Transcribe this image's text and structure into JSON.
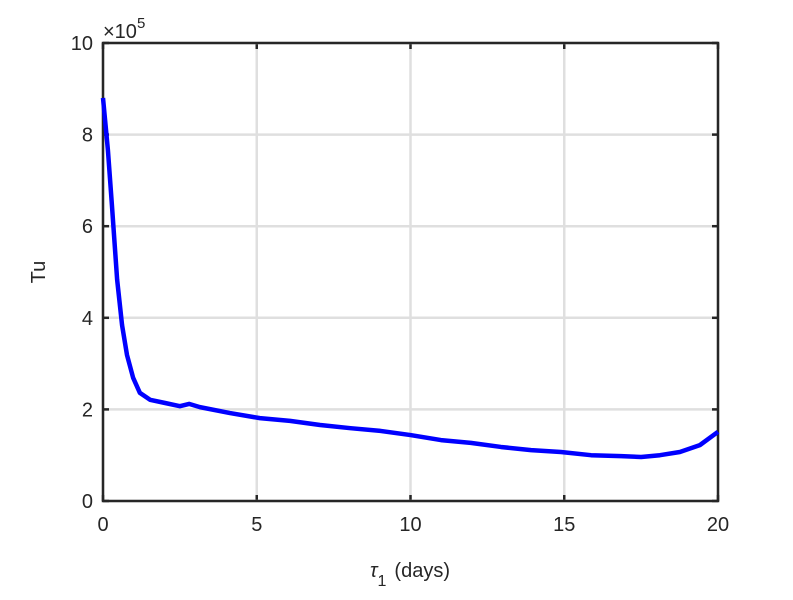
{
  "chart_data": {
    "type": "line",
    "ylabel": "Tu",
    "xlabel": {
      "symbol": "τ",
      "subscript": "1",
      "text": "(days)"
    },
    "y_exponent": {
      "base": "×10",
      "power": "5"
    },
    "xlim": [
      0,
      20
    ],
    "xticks": [
      0,
      5,
      10,
      15,
      20
    ],
    "ylim": [
      0,
      10
    ],
    "yticks": [
      0,
      2,
      4,
      6,
      8,
      10
    ],
    "grid": true,
    "series": [
      {
        "color": "#0000ff",
        "x": [
          0,
          0.16,
          0.29,
          0.46,
          0.62,
          0.78,
          0.98,
          1.2,
          1.53,
          2.02,
          2.5,
          2.8,
          3.15,
          4.13,
          5.1,
          6.08,
          7.06,
          8.05,
          9.02,
          10.0,
          10.99,
          11.96,
          12.94,
          13.92,
          14.89,
          15.87,
          16.85,
          17.5,
          18.11,
          18.76,
          19.41,
          20
        ],
        "values": [
          8.8,
          7.66,
          6.46,
          4.83,
          3.84,
          3.19,
          2.69,
          2.36,
          2.21,
          2.14,
          2.07,
          2.12,
          2.05,
          1.92,
          1.81,
          1.75,
          1.66,
          1.59,
          1.53,
          1.44,
          1.33,
          1.27,
          1.18,
          1.11,
          1.07,
          1.0,
          0.98,
          0.96,
          1.0,
          1.07,
          1.22,
          1.51
        ]
      }
    ]
  }
}
